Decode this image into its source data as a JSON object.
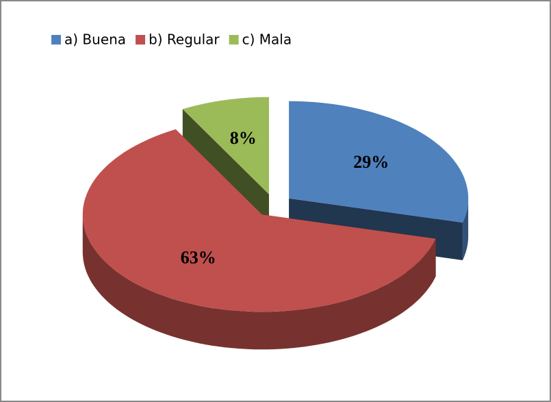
{
  "chart_data": {
    "type": "pie",
    "categories": [
      "a) Buena",
      "b) Regular",
      "c) Mala"
    ],
    "values": [
      29,
      63,
      8
    ],
    "value_labels": [
      "29%",
      "63%",
      "8%"
    ],
    "colors": [
      "#4f81bd",
      "#c0504d",
      "#9bbb59"
    ],
    "legend": "top-left"
  }
}
